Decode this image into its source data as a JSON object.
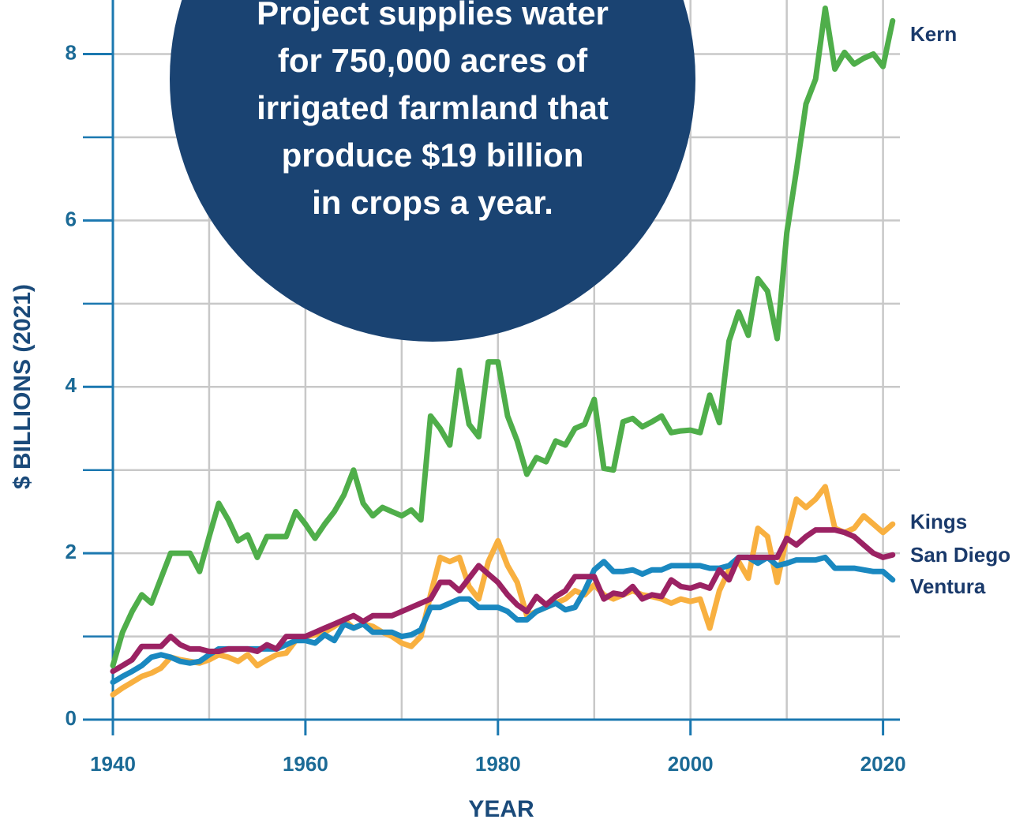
{
  "chart_data": {
    "type": "line",
    "annotation": [
      "Project supplies water",
      "for 750,000 acres of",
      "irrigated farmland that",
      "produce $19 billion",
      "in crops a year."
    ],
    "x_label": "YEAR",
    "y_label": "$ BILLIONS (2021)",
    "x": [
      1940,
      1941,
      1942,
      1943,
      1944,
      1945,
      1946,
      1947,
      1948,
      1949,
      1950,
      1951,
      1952,
      1953,
      1954,
      1955,
      1956,
      1957,
      1958,
      1959,
      1960,
      1961,
      1962,
      1963,
      1964,
      1965,
      1966,
      1967,
      1968,
      1969,
      1970,
      1971,
      1972,
      1973,
      1974,
      1975,
      1976,
      1977,
      1978,
      1979,
      1980,
      1981,
      1982,
      1983,
      1984,
      1985,
      1986,
      1987,
      1988,
      1989,
      1990,
      1991,
      1992,
      1993,
      1994,
      1995,
      1996,
      1997,
      1998,
      1999,
      2000,
      2001,
      2002,
      2003,
      2004,
      2005,
      2006,
      2007,
      2008,
      2009,
      2010,
      2011,
      2012,
      2013,
      2014,
      2015,
      2016,
      2017,
      2018,
      2019,
      2020,
      2021
    ],
    "series": [
      {
        "name": "Kings",
        "color": "#f8b040",
        "values": [
          0.3,
          0.38,
          0.45,
          0.52,
          0.56,
          0.62,
          0.75,
          0.72,
          0.7,
          0.68,
          0.72,
          0.78,
          0.75,
          0.7,
          0.78,
          0.65,
          0.72,
          0.78,
          0.8,
          0.95,
          1.0,
          1.02,
          1.05,
          1.12,
          1.2,
          1.1,
          1.15,
          1.12,
          1.05,
          1.0,
          0.92,
          0.88,
          1.0,
          1.5,
          1.95,
          1.9,
          1.95,
          1.6,
          1.45,
          1.9,
          2.15,
          1.85,
          1.65,
          1.25,
          1.3,
          1.35,
          1.4,
          1.45,
          1.55,
          1.5,
          1.62,
          1.5,
          1.45,
          1.5,
          1.55,
          1.5,
          1.48,
          1.45,
          1.4,
          1.45,
          1.42,
          1.45,
          1.1,
          1.55,
          1.8,
          1.9,
          1.7,
          2.3,
          2.2,
          1.65,
          2.2,
          2.65,
          2.55,
          2.65,
          2.8,
          2.3,
          2.25,
          2.3,
          2.45,
          2.35,
          2.25,
          2.35
        ]
      },
      {
        "name": "Ventura",
        "color": "#1a88c0",
        "values": [
          0.45,
          0.52,
          0.58,
          0.65,
          0.75,
          0.78,
          0.75,
          0.7,
          0.68,
          0.7,
          0.78,
          0.85,
          0.85,
          0.85,
          0.85,
          0.85,
          0.85,
          0.85,
          0.9,
          0.95,
          0.95,
          0.92,
          1.02,
          0.95,
          1.15,
          1.1,
          1.15,
          1.05,
          1.05,
          1.05,
          1.0,
          1.02,
          1.08,
          1.35,
          1.35,
          1.4,
          1.45,
          1.45,
          1.35,
          1.35,
          1.35,
          1.3,
          1.2,
          1.2,
          1.3,
          1.35,
          1.4,
          1.32,
          1.35,
          1.55,
          1.8,
          1.9,
          1.78,
          1.78,
          1.8,
          1.75,
          1.8,
          1.8,
          1.85,
          1.85,
          1.85,
          1.85,
          1.82,
          1.82,
          1.85,
          1.95,
          1.95,
          1.88,
          1.95,
          1.85,
          1.88,
          1.92,
          1.92,
          1.92,
          1.95,
          1.82,
          1.82,
          1.82,
          1.8,
          1.78,
          1.78,
          1.68
        ]
      },
      {
        "name": "San Diego",
        "color": "#9b2263",
        "values": [
          0.58,
          0.65,
          0.72,
          0.88,
          0.88,
          0.88,
          1.0,
          0.9,
          0.85,
          0.85,
          0.82,
          0.82,
          0.85,
          0.85,
          0.85,
          0.82,
          0.9,
          0.85,
          1.0,
          1.0,
          1.0,
          1.05,
          1.1,
          1.15,
          1.2,
          1.25,
          1.18,
          1.25,
          1.25,
          1.25,
          1.3,
          1.35,
          1.4,
          1.45,
          1.65,
          1.65,
          1.55,
          1.7,
          1.85,
          1.75,
          1.65,
          1.5,
          1.38,
          1.3,
          1.48,
          1.38,
          1.48,
          1.55,
          1.72,
          1.72,
          1.72,
          1.45,
          1.52,
          1.5,
          1.6,
          1.45,
          1.5,
          1.48,
          1.68,
          1.6,
          1.58,
          1.62,
          1.58,
          1.8,
          1.68,
          1.95,
          1.95,
          1.95,
          1.95,
          1.95,
          2.18,
          2.1,
          2.2,
          2.28,
          2.28,
          2.28,
          2.25,
          2.2,
          2.1,
          2.0,
          1.95,
          1.98
        ]
      },
      {
        "name": "Kern",
        "color": "#4fae4a",
        "values": [
          0.65,
          1.05,
          1.3,
          1.5,
          1.4,
          1.7,
          2.0,
          2.0,
          2.0,
          1.78,
          2.2,
          2.6,
          2.4,
          2.15,
          2.22,
          1.95,
          2.2,
          2.2,
          2.2,
          2.5,
          2.35,
          2.18,
          2.35,
          2.5,
          2.7,
          3.0,
          2.6,
          2.45,
          2.55,
          2.5,
          2.45,
          2.52,
          2.4,
          3.65,
          3.5,
          3.3,
          4.2,
          3.55,
          3.4,
          4.3,
          4.3,
          3.65,
          3.35,
          2.95,
          3.15,
          3.1,
          3.35,
          3.3,
          3.5,
          3.55,
          3.85,
          3.02,
          3.0,
          3.58,
          3.62,
          3.52,
          3.58,
          3.65,
          3.45,
          3.47,
          3.48,
          3.45,
          3.9,
          3.57,
          4.55,
          4.9,
          4.62,
          5.3,
          5.15,
          4.58,
          5.85,
          6.6,
          7.4,
          7.7,
          8.55,
          7.82,
          8.02,
          7.88,
          7.95,
          8.0,
          7.85,
          8.4
        ]
      }
    ],
    "xlim": [
      1940,
      2022
    ],
    "xticks": [
      1940,
      1960,
      1980,
      2000,
      2020
    ],
    "ylim": [
      0,
      8.65
    ],
    "yticks": [
      0,
      2,
      4,
      6,
      8
    ],
    "grid": true
  }
}
